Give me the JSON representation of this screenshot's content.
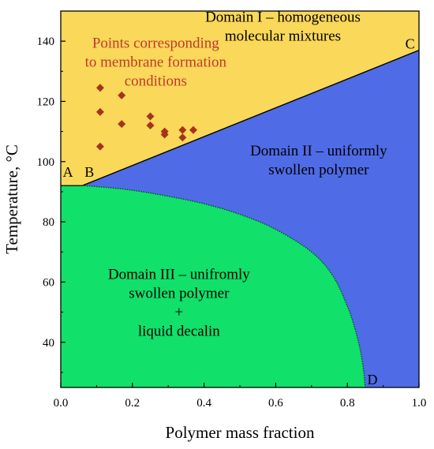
{
  "chart_data": {
    "type": "area",
    "xlabel": "Polymer mass fraction",
    "ylabel": "Temperature, °C",
    "xlim": [
      0.0,
      1.0
    ],
    "ylim": [
      25,
      150
    ],
    "xticks": [
      {
        "value": 0.0,
        "label": "0.0"
      },
      {
        "value": 0.2,
        "label": "0.2"
      },
      {
        "value": 0.4,
        "label": "0.4"
      },
      {
        "value": 0.6,
        "label": "0.6"
      },
      {
        "value": 0.8,
        "label": "0.8"
      },
      {
        "value": 1.0,
        "label": "1.0"
      }
    ],
    "yticks": [
      {
        "value": 40,
        "label": "40"
      },
      {
        "value": 60,
        "label": "60"
      },
      {
        "value": 80,
        "label": "80"
      },
      {
        "value": 100,
        "label": "100"
      },
      {
        "value": 120,
        "label": "120"
      },
      {
        "value": 140,
        "label": "140"
      }
    ],
    "regions": [
      {
        "name": "domain-i",
        "color": "#f9d85a",
        "label_lines": [
          "Domain I – homogeneous",
          "molecular mixtures"
        ],
        "label_at": [
          0.62,
          146.5
        ]
      },
      {
        "name": "domain-ii",
        "color": "#4f6be6",
        "label_lines": [
          "Domain II – uniformly",
          "swollen polymer"
        ],
        "label_at": [
          0.72,
          102
        ]
      },
      {
        "name": "domain-iii",
        "color": "#11e06a",
        "label_lines": [
          "Domain III – unifromly",
          "swollen polymer",
          "+",
          "liquid decalin"
        ],
        "label_at": [
          0.33,
          61
        ]
      }
    ],
    "boundary_upper": {
      "x": [
        0.0,
        0.06,
        1.0
      ],
      "y": [
        92,
        92,
        137
      ]
    },
    "boundary_lower": {
      "x": [
        0.0,
        0.06,
        0.12,
        0.2,
        0.3,
        0.4,
        0.5,
        0.6,
        0.7,
        0.76,
        0.8,
        0.82,
        0.835,
        0.845,
        0.85
      ],
      "y": [
        92,
        92,
        91.5,
        90.5,
        88.5,
        86,
        82.5,
        77.5,
        70,
        62,
        52,
        45,
        38,
        31,
        25
      ]
    },
    "series": [
      {
        "name": "Points corresponding to membrane formation conditions",
        "color": "#a8321d",
        "points": [
          {
            "x": 0.11,
            "y": 124.5
          },
          {
            "x": 0.17,
            "y": 122
          },
          {
            "x": 0.11,
            "y": 116.5
          },
          {
            "x": 0.11,
            "y": 105
          },
          {
            "x": 0.17,
            "y": 112.5
          },
          {
            "x": 0.25,
            "y": 115
          },
          {
            "x": 0.25,
            "y": 112
          },
          {
            "x": 0.29,
            "y": 110
          },
          {
            "x": 0.29,
            "y": 109
          },
          {
            "x": 0.34,
            "y": 110.5
          },
          {
            "x": 0.34,
            "y": 108
          },
          {
            "x": 0.37,
            "y": 110.5
          }
        ]
      }
    ],
    "annotation": {
      "lines": [
        "Points corresponding",
        "to membrane formation",
        "conditions"
      ],
      "at": [
        0.265,
        137.8
      ]
    },
    "point_labels": [
      {
        "text": "A",
        "at": [
          0.02,
          95
        ]
      },
      {
        "text": "B",
        "at": [
          0.08,
          95
        ]
      },
      {
        "text": "C",
        "at": [
          0.975,
          137.5
        ]
      },
      {
        "text": "D",
        "at": [
          0.87,
          26
        ]
      }
    ]
  }
}
